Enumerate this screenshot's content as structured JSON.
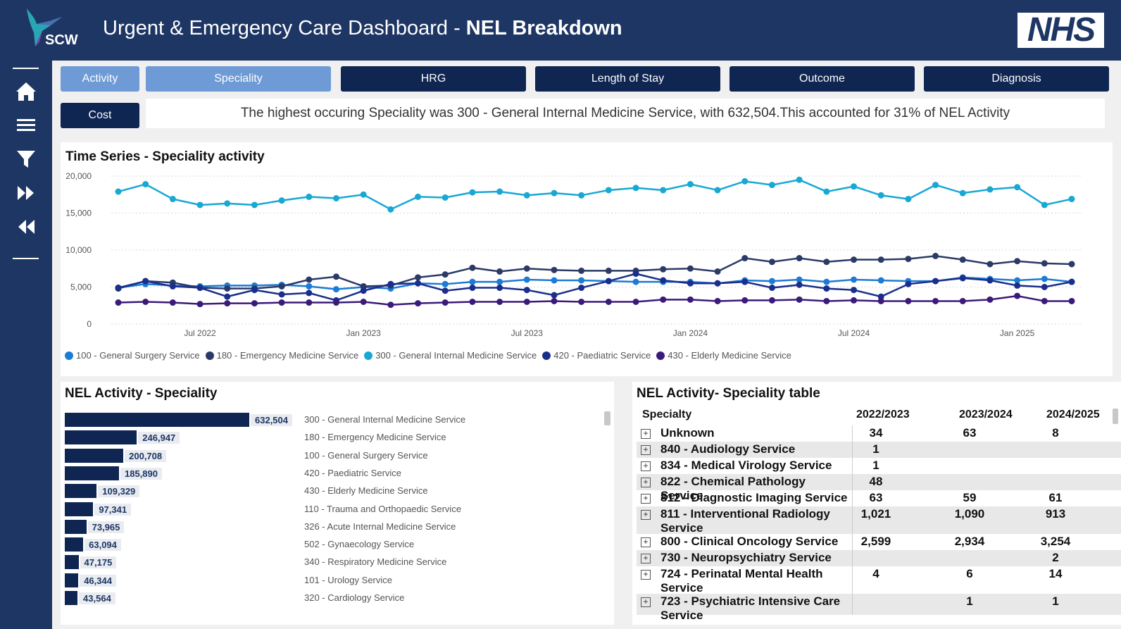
{
  "header": {
    "logo_text": "SCW",
    "title_regular": "Urgent & Emergency Care Dashboard - ",
    "title_bold": "NEL Breakdown",
    "nhs_logo": "NHS"
  },
  "sidebar": {
    "icons": [
      "home-icon",
      "menu-icon",
      "filter-icon",
      "fast-forward-icon",
      "rewind-icon"
    ]
  },
  "tabs": [
    {
      "label": "Activity",
      "active": true
    },
    {
      "label": "Speciality",
      "active": true
    },
    {
      "label": "HRG",
      "active": false
    },
    {
      "label": "Length of Stay",
      "active": false
    },
    {
      "label": "Outcome",
      "active": false
    },
    {
      "label": "Diagnosis",
      "active": false
    },
    {
      "label": "Cost",
      "active": false
    }
  ],
  "summary": {
    "text": "The highest occuring Speciality was 300 - General Internal Medicine Service, with 632,504.This accounted for 31% of NEL Activity"
  },
  "time_series": {
    "title": "Time Series - Speciality activity",
    "y_ticks": [
      "20,000",
      "15,000",
      "10,000",
      "5,000",
      "0"
    ],
    "x_ticks": [
      "Jul 2022",
      "Jan 2023",
      "Jul 2023",
      "Jan 2024",
      "Jul 2024",
      "Jan 2025"
    ]
  },
  "bar_panel": {
    "title": "NEL Activity - Speciality"
  },
  "table_panel": {
    "title": "NEL Activity- Speciality table",
    "headers": [
      "Specialty",
      "2022/2023",
      "2023/2024",
      "2024/2025"
    ],
    "rows": [
      {
        "name": "Unknown",
        "v1": "34",
        "v2": "63",
        "v3": "8"
      },
      {
        "name": "840 - Audiology Service",
        "v1": "1",
        "v2": "",
        "v3": ""
      },
      {
        "name": "834 - Medical Virology Service",
        "v1": "1",
        "v2": "",
        "v3": ""
      },
      {
        "name": "822 - Chemical Pathology Service",
        "v1": "48",
        "v2": "",
        "v3": ""
      },
      {
        "name": "812 - Diagnostic Imaging Service",
        "v1": "63",
        "v2": "59",
        "v3": "61"
      },
      {
        "name": "811 - Interventional Radiology Service",
        "v1": "1,021",
        "v2": "1,090",
        "v3": "913"
      },
      {
        "name": "800 - Clinical Oncology Service",
        "v1": "2,599",
        "v2": "2,934",
        "v3": "3,254"
      },
      {
        "name": "730 - Neuropsychiatry Service",
        "v1": "",
        "v2": "",
        "v3": "2"
      },
      {
        "name": "724 - Perinatal Mental Health Service",
        "v1": "4",
        "v2": "6",
        "v3": "14"
      },
      {
        "name": "723 - Psychiatric Intensive Care Service",
        "v1": "",
        "v2": "1",
        "v3": "1"
      }
    ]
  },
  "chart_data": [
    {
      "type": "line",
      "title": "Time Series - Speciality activity",
      "ylim": [
        0,
        20000
      ],
      "x_tick_labels": [
        "Jul 2022",
        "Jan 2023",
        "Jul 2023",
        "Jan 2024",
        "Jul 2024",
        "Jan 2025"
      ],
      "x": [
        "2022-04",
        "2022-05",
        "2022-06",
        "2022-07",
        "2022-08",
        "2022-09",
        "2022-10",
        "2022-11",
        "2022-12",
        "2023-01",
        "2023-02",
        "2023-03",
        "2023-04",
        "2023-05",
        "2023-06",
        "2023-07",
        "2023-08",
        "2023-09",
        "2023-10",
        "2023-11",
        "2023-12",
        "2024-01",
        "2024-02",
        "2024-03",
        "2024-04",
        "2024-05",
        "2024-06",
        "2024-07",
        "2024-08",
        "2024-09",
        "2024-10",
        "2024-11",
        "2024-12",
        "2025-01",
        "2025-02",
        "2025-03"
      ],
      "grid": true,
      "legend": "bottom",
      "series": [
        {
          "name": "100 - General Surgery Service",
          "color": "#1c7bd4",
          "values": [
            4900,
            5400,
            5200,
            5100,
            5200,
            5200,
            5300,
            5100,
            4700,
            5000,
            4800,
            5500,
            5400,
            5700,
            5700,
            6000,
            5900,
            5900,
            5800,
            5700,
            5700,
            5700,
            5500,
            5900,
            5800,
            6000,
            5700,
            6000,
            5900,
            5800,
            5800,
            6300,
            6100,
            5900,
            6100,
            5700
          ]
        },
        {
          "name": "180 - Emergency Medicine Service",
          "color": "#2b3a67",
          "values": [
            4800,
            5800,
            5600,
            4900,
            4800,
            4800,
            5100,
            6000,
            6400,
            5100,
            5200,
            6300,
            6700,
            7600,
            7100,
            7500,
            7300,
            7200,
            7200,
            7200,
            7400,
            7500,
            7100,
            8900,
            8400,
            8900,
            8400,
            8700,
            8700,
            8800,
            9200,
            8700,
            8100,
            8500,
            8200,
            8100
          ]
        },
        {
          "name": "300 - General Internal Medicine Service",
          "color": "#17a8d4",
          "values": [
            17900,
            18900,
            16900,
            16100,
            16300,
            16100,
            16700,
            17200,
            17000,
            17500,
            15500,
            17200,
            17100,
            17800,
            17900,
            17400,
            17700,
            17400,
            18100,
            18400,
            18100,
            18900,
            18100,
            19300,
            18800,
            19500,
            17900,
            18600,
            17400,
            16900,
            18800,
            17700,
            18200,
            18500,
            16100,
            16900
          ]
        },
        {
          "name": "420 - Paediatric Service",
          "color": "#1a2f8c",
          "values": [
            4900,
            5800,
            5100,
            4900,
            3700,
            4600,
            4000,
            4200,
            3200,
            4500,
            5400,
            5500,
            4500,
            4900,
            4900,
            4600,
            3900,
            4900,
            5800,
            6800,
            5900,
            5500,
            5500,
            5700,
            4900,
            5300,
            4800,
            4600,
            3700,
            5400,
            5800,
            6200,
            5900,
            5200,
            5000,
            5700
          ]
        },
        {
          "name": "430 - Elderly Medicine Service",
          "color": "#3b1a7a",
          "values": [
            2900,
            3000,
            2900,
            2700,
            2800,
            2800,
            2900,
            2900,
            2900,
            3000,
            2600,
            2800,
            2900,
            3000,
            3000,
            3000,
            3100,
            3000,
            3000,
            3000,
            3300,
            3300,
            3100,
            3200,
            3200,
            3300,
            3100,
            3200,
            3100,
            3100,
            3100,
            3100,
            3300,
            3800,
            3100,
            3100
          ]
        }
      ]
    },
    {
      "type": "bar",
      "title": "NEL Activity - Speciality",
      "orientation": "horizontal",
      "categories": [
        "300 - General Internal Medicine Service",
        "180 - Emergency Medicine Service",
        "100 - General Surgery Service",
        "420 - Paediatric Service",
        "430 - Elderly Medicine Service",
        "110 - Trauma and Orthopaedic Service",
        "326 - Acute Internal Medicine Service",
        "502 - Gynaecology Service",
        "340 - Respiratory Medicine Service",
        "101 - Urology Service",
        "320 - Cardiology Service"
      ],
      "values": [
        632504,
        246947,
        200708,
        185890,
        109329,
        97341,
        73965,
        63094,
        47175,
        46344,
        43564
      ],
      "value_labels": [
        "632,504",
        "246,947",
        "200,708",
        "185,890",
        "109,329",
        "97,341",
        "73,965",
        "63,094",
        "47,175",
        "46,344",
        "43,564"
      ],
      "color": "#0f2552"
    }
  ]
}
